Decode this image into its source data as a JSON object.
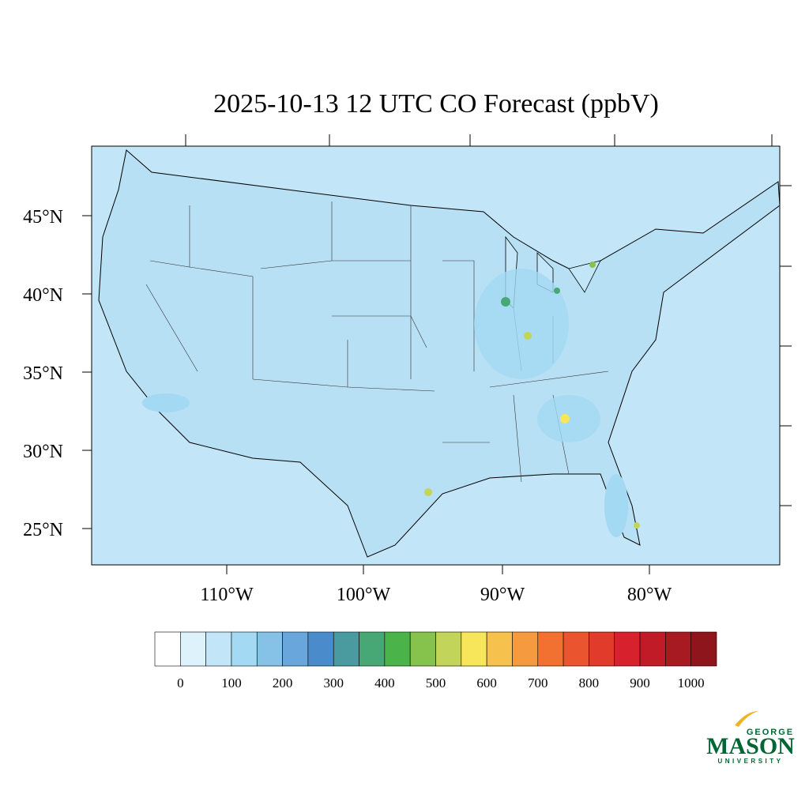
{
  "title": "2025-10-13 12 UTC CO Forecast (ppbV)",
  "lat_labels": [
    "45°N",
    "40°N",
    "35°N",
    "30°N",
    "25°N"
  ],
  "lon_labels": [
    "110°W",
    "100°W",
    "90°W",
    "80°W"
  ],
  "colorbar": {
    "colors": [
      "#ffffff",
      "#def2fb",
      "#c2e6f7",
      "#a3d9f3",
      "#86c1e8",
      "#68a6dc",
      "#4a8bcb",
      "#4a9ba0",
      "#48a875",
      "#4ab44a",
      "#86c34c",
      "#c3d45a",
      "#f7e65a",
      "#f7c14e",
      "#f59a3e",
      "#f27130",
      "#ea5530",
      "#e03b2b",
      "#d7222d",
      "#c11b27",
      "#a81a22",
      "#8f151c"
    ],
    "labels": [
      0,
      100,
      200,
      300,
      400,
      500,
      600,
      700,
      800,
      900,
      1000
    ]
  },
  "logo": {
    "top": "GEORGE",
    "main": "MASON",
    "bottom": "UNIVERSITY"
  }
}
